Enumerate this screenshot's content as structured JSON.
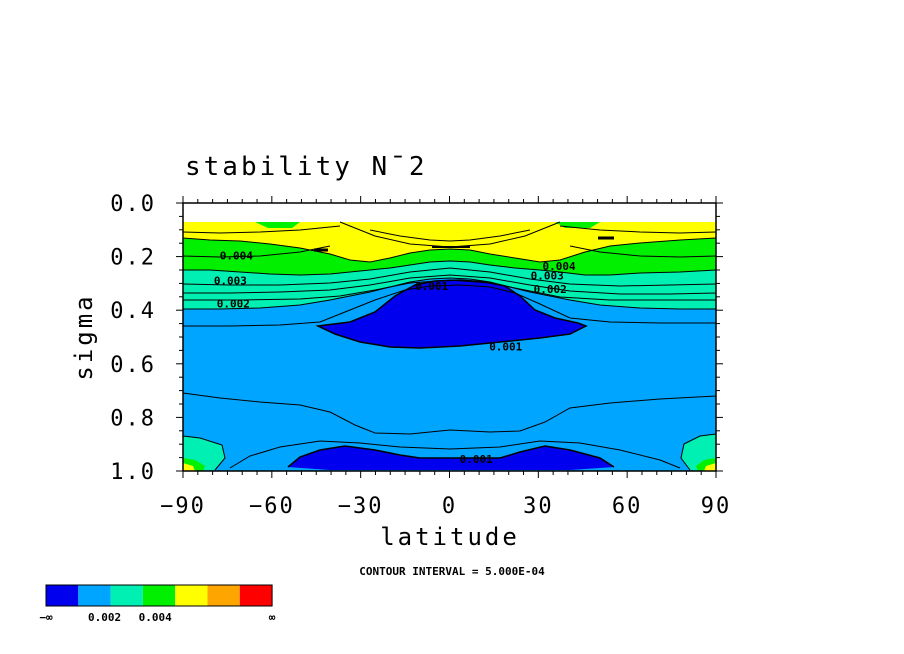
{
  "chart_data": {
    "type": "heatmap",
    "title": "stability N¯2",
    "xlabel": "latitude",
    "ylabel": "sigma",
    "x_ticks": [
      "−90",
      "−60",
      "−30",
      "0",
      "30",
      "60",
      "90"
    ],
    "x_tick_values": [
      -90,
      -60,
      -30,
      0,
      30,
      60,
      90
    ],
    "y_ticks": [
      "0.0",
      "0.2",
      "0.4",
      "0.6",
      "0.8",
      "1.0"
    ],
    "y_tick_values": [
      0.0,
      0.2,
      0.4,
      0.6,
      0.8,
      1.0
    ],
    "xlim": [
      -90,
      90
    ],
    "ylim": [
      1.0,
      0.0
    ],
    "contour_interval_text": "CONTOUR INTERVAL = 5.000E-04",
    "contour_interval": 0.0005,
    "contour_labels": [
      {
        "text": "0.004",
        "lat": -72,
        "sigma": 0.195
      },
      {
        "text": "0.003",
        "lat": -74,
        "sigma": 0.29
      },
      {
        "text": "0.002",
        "lat": -73,
        "sigma": 0.375
      },
      {
        "text": "0.001",
        "lat": -6,
        "sigma": 0.31
      },
      {
        "text": "0.004",
        "lat": 37,
        "sigma": 0.235
      },
      {
        "text": "0.003",
        "lat": 33,
        "sigma": 0.27
      },
      {
        "text": "0.002",
        "lat": 34,
        "sigma": 0.32
      },
      {
        "text": "0.001",
        "lat": 19,
        "sigma": 0.535
      },
      {
        "text": "0.001",
        "lat": 9,
        "sigma": 0.955
      }
    ],
    "colorbar": {
      "colors": [
        "#0000ee",
        "#00a5ff",
        "#00f0b4",
        "#00f000",
        "#ffff00",
        "#ffa500",
        "#ff0000"
      ],
      "labels": [
        "−∞",
        "0.002",
        "0.004",
        "∞"
      ],
      "levels": [
        0.001,
        0.002,
        0.003,
        0.004,
        0.005,
        0.006
      ]
    }
  }
}
